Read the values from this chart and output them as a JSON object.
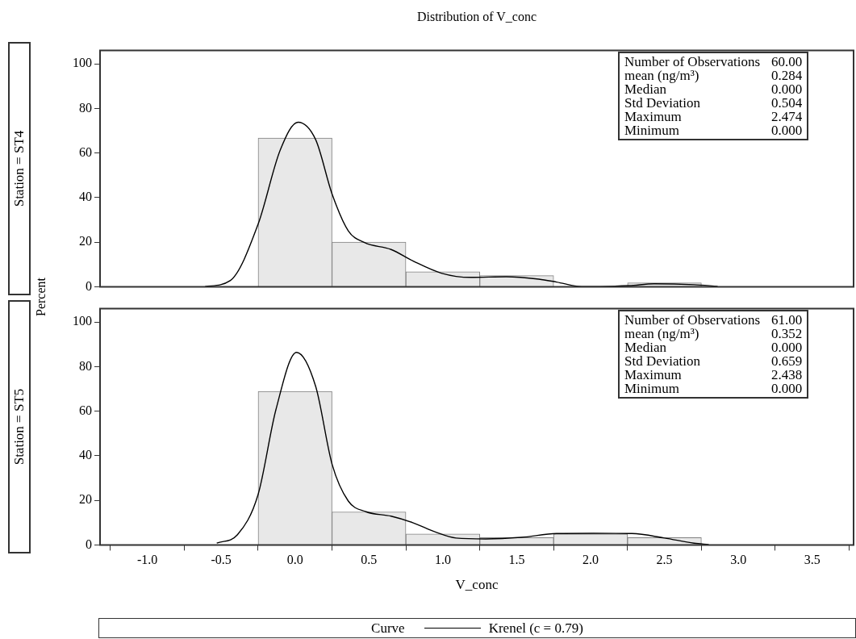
{
  "chart_data": [
    {
      "type": "histogram",
      "title": "Distribution of V_conc",
      "subtitle": "Station = ST4",
      "ylabel": "Percent",
      "xlim": [
        -1.32,
        3.78
      ],
      "ylim": [
        0,
        106
      ],
      "yticks": [
        0,
        20,
        40,
        60,
        80,
        100
      ],
      "tick_labels": "y",
      "series": [
        {
          "color": "#e8e8e8",
          "bins": [
            -0.25,
            0.25,
            0.75,
            1.25,
            1.75,
            2.25,
            2.75
          ],
          "values": [
            66.7,
            20.0,
            6.7,
            5.0,
            0,
            1.7
          ]
        },
        {
          "type": "line",
          "color": "#000000",
          "x": [
            -0.61,
            -0.44,
            -0.25,
            -0.1,
            0.02,
            0.14,
            0.25,
            0.36,
            0.47,
            0.65,
            0.8,
            0.99,
            1.19,
            1.43,
            1.65,
            1.77,
            1.94,
            2.26,
            2.43,
            2.7,
            2.86
          ],
          "values": [
            0.1,
            2.7,
            28.1,
            61.4,
            73.8,
            65.9,
            41.7,
            25.1,
            19.8,
            16.7,
            11.5,
            6.1,
            4.2,
            4.5,
            3.4,
            2.1,
            0.1,
            0.5,
            1.3,
            0.9,
            0.2
          ]
        }
      ],
      "marker": "none",
      "annotations": [
        "Number of Observations",
        "60.00",
        "mean (ng/m³)",
        "0.284",
        "Median",
        "0.000",
        "Std Deviation",
        "0.504",
        "Maximum",
        "2.474",
        "Minimum",
        "0.000"
      ]
    },
    {
      "type": "histogram",
      "subtitle": "Station = ST5",
      "xlabel": "V_conc",
      "legend_title": "Curve",
      "legend": "bottom",
      "xlim": [
        -1.32,
        3.78
      ],
      "ylim": [
        0,
        106
      ],
      "xticks": [
        {
          "value": -1,
          "label": "-1.0"
        },
        {
          "value": -0.5,
          "label": "-0.5"
        },
        {
          "value": 0,
          "label": "0.0"
        },
        {
          "value": 0.5,
          "label": "0.5"
        },
        {
          "value": 1,
          "label": "1.0"
        },
        {
          "value": 1.5,
          "label": "1.5"
        },
        {
          "value": 2,
          "label": "2.0"
        },
        {
          "value": 2.5,
          "label": "2.5"
        },
        {
          "value": 3,
          "label": "3.0"
        },
        {
          "value": 3.5,
          "label": "3.5"
        }
      ],
      "yticks": [
        0,
        20,
        40,
        60,
        80,
        100
      ],
      "series": [
        {
          "color": "#e8e8e8",
          "bins": [
            -0.25,
            0.25,
            0.75,
            1.25,
            1.75,
            2.25,
            2.75
          ],
          "values": [
            68.9,
            14.8,
            4.9,
            3.3,
            4.9,
            3.3
          ]
        },
        {
          "type": "line",
          "name": "Krenel (c = 0.79)",
          "color": "#000000",
          "x": [
            -0.53,
            -0.39,
            -0.25,
            -0.13,
            0.01,
            0.14,
            0.25,
            0.36,
            0.48,
            0.65,
            0.8,
            0.95,
            1.09,
            1.29,
            1.53,
            1.77,
            2.02,
            2.28,
            2.5,
            2.7,
            2.8
          ],
          "values": [
            0.8,
            4.6,
            22.7,
            60.6,
            86.4,
            71,
            36.3,
            19.7,
            14.9,
            12.9,
            9.9,
            5.8,
            3.1,
            2.7,
            3.4,
            5.1,
            5.2,
            5.1,
            3.1,
            0.8,
            0.2
          ]
        }
      ],
      "marker": "none",
      "annotations": [
        "Number of Observations",
        "61.00",
        "mean (ng/m³)",
        "0.352",
        "Median",
        "0.000",
        "Std Deviation",
        "0.659",
        "Maximum",
        "2.438",
        "Minimum",
        "0.000"
      ]
    }
  ]
}
